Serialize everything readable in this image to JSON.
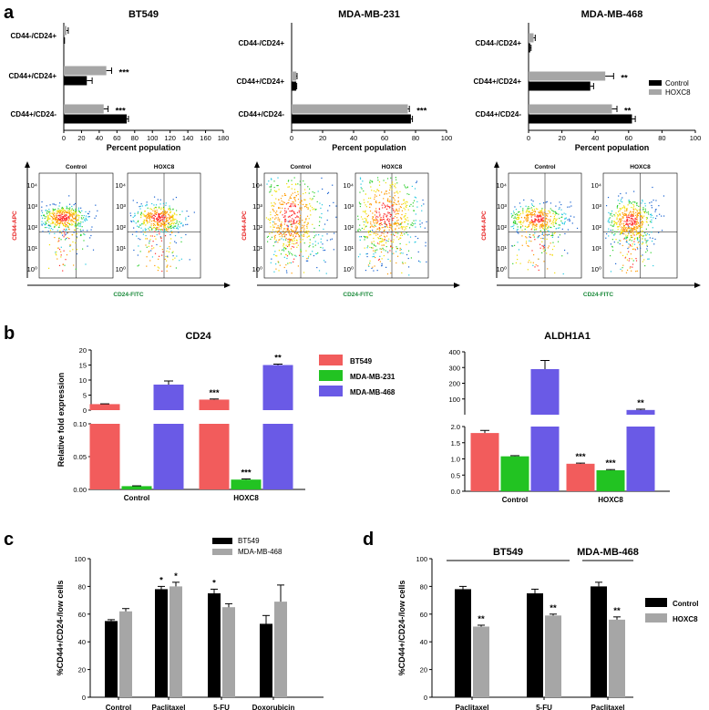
{
  "figure": {
    "panel_labels": [
      "a",
      "b",
      "c",
      "d"
    ]
  },
  "colors": {
    "black": "#000000",
    "gray": "#a6a6a6",
    "bt549": "#f25c5c",
    "mda231": "#22c322",
    "mda468": "#6a5ae6",
    "flow_red": "#e82020",
    "flow_green": "#1a8a3a"
  },
  "chart_data": [
    {
      "id": "a_bt549",
      "type": "bar",
      "orientation": "horizontal",
      "title": "BT549",
      "categories": [
        "CD44-/CD24+",
        "CD44+/CD24+",
        "CD44+/CD24-"
      ],
      "series": [
        {
          "name": "HOXC8",
          "values": [
            3,
            48,
            45
          ],
          "errors": [
            2,
            6,
            5
          ],
          "sig": [
            "",
            "***",
            "***"
          ]
        },
        {
          "name": "Control",
          "values": [
            0.5,
            26,
            71
          ],
          "errors": [
            0.3,
            6,
            2
          ],
          "sig": [
            "",
            "",
            ""
          ]
        }
      ],
      "xlabel": "Percent population",
      "xlim": [
        0,
        180
      ],
      "xticks": [
        "0",
        "20",
        "40",
        "60",
        "80",
        "100",
        "120",
        "140",
        "160",
        "180"
      ]
    },
    {
      "id": "a_mda231",
      "type": "bar",
      "orientation": "horizontal",
      "title": "MDA-MB-231",
      "categories": [
        "CD44-/CD24+",
        "CD44+/CD24+",
        "CD44+/CD24-"
      ],
      "series": [
        {
          "name": "HOXC8",
          "values": [
            0,
            3,
            75
          ],
          "errors": [
            0,
            0.5,
            1
          ],
          "sig": [
            "",
            "",
            "***"
          ]
        },
        {
          "name": "Control",
          "values": [
            0,
            3,
            77
          ],
          "errors": [
            0,
            0.3,
            1
          ],
          "sig": [
            "",
            "",
            ""
          ]
        }
      ],
      "xlabel": "Percent population",
      "xlim": [
        0,
        100
      ],
      "xticks": [
        "0",
        "20",
        "40",
        "60",
        "80",
        "100"
      ]
    },
    {
      "id": "a_mda468",
      "type": "bar",
      "orientation": "horizontal",
      "title": "MDA-MB-468",
      "categories": [
        "CD44-/CD24+",
        "CD44+/CD24+",
        "CD44+/CD24-"
      ],
      "series": [
        {
          "name": "HOXC8",
          "values": [
            3,
            46,
            50
          ],
          "errors": [
            1,
            5,
            3
          ],
          "sig": [
            "",
            "**",
            "**"
          ]
        },
        {
          "name": "Control",
          "values": [
            1,
            37,
            62
          ],
          "errors": [
            0.5,
            2,
            2
          ],
          "sig": [
            "",
            "",
            ""
          ]
        }
      ],
      "xlabel": "Percent population",
      "xlim": [
        0,
        100
      ],
      "xticks": [
        "0",
        "20",
        "40",
        "60",
        "80",
        "100"
      ],
      "legend": [
        {
          "name": "Control",
          "color": "black"
        },
        {
          "name": "HOXC8",
          "color": "gray"
        }
      ]
    },
    {
      "id": "a_flow",
      "type": "scatter",
      "title": "Flow cytometry density plots",
      "groups": [
        {
          "line": "BT549",
          "conditions": [
            "Control",
            "HOXC8"
          ]
        },
        {
          "line": "MDA-MB-231",
          "conditions": [
            "Control",
            "HOXC8"
          ]
        },
        {
          "line": "MDA-MB-468",
          "conditions": [
            "Control",
            "HOXC8"
          ]
        }
      ],
      "xlabel": "CD24-FITC",
      "ylabel": "CD44-APC",
      "log_ticks": [
        "10⁰",
        "10¹",
        "10²",
        "10³",
        "10⁴"
      ]
    },
    {
      "id": "b_cd24",
      "type": "bar",
      "title": "CD24",
      "ylabel": "Relative fold expression",
      "categories": [
        "Control",
        "HOXC8"
      ],
      "series": [
        {
          "name": "BT549",
          "values": [
            2,
            3.5
          ],
          "errors": [
            0.1,
            0.2
          ],
          "sig": [
            "",
            "***"
          ]
        },
        {
          "name": "MDA-MB-231",
          "values": [
            0.005,
            0.015
          ],
          "errors": [
            0.0005,
            0.001
          ],
          "sig": [
            "",
            "***"
          ]
        },
        {
          "name": "MDA-MB-468",
          "values": [
            8.5,
            15
          ],
          "errors": [
            1.2,
            0.3
          ],
          "sig": [
            "",
            "**"
          ]
        }
      ],
      "axis_break": {
        "lower": [
          0,
          0.1
        ],
        "upper": [
          0,
          20
        ]
      },
      "yticks_lower": [
        "0.00",
        "0.05",
        "0.10"
      ],
      "yticks_upper": [
        "0",
        "5",
        "10",
        "15",
        "20"
      ]
    },
    {
      "id": "b_aldh1a1",
      "type": "bar",
      "title": "ALDH1A1",
      "categories": [
        "Control",
        "HOXC8"
      ],
      "series": [
        {
          "name": "BT549",
          "values": [
            1.8,
            0.85
          ],
          "errors": [
            0.08,
            0.02
          ],
          "sig": [
            "",
            "***"
          ]
        },
        {
          "name": "MDA-MB-231",
          "values": [
            1.08,
            0.65
          ],
          "errors": [
            0.02,
            0.02
          ],
          "sig": [
            "",
            "***"
          ]
        },
        {
          "name": "MDA-MB-468",
          "values": [
            290,
            30
          ],
          "errors": [
            55,
            5
          ],
          "sig": [
            "",
            "**"
          ]
        }
      ],
      "axis_break": {
        "lower": [
          0,
          2
        ],
        "upper": [
          0,
          400
        ]
      },
      "yticks_lower": [
        "0.0",
        "0.5",
        "1.0",
        "1.5",
        "2.0"
      ],
      "yticks_upper": [
        "100",
        "200",
        "300",
        "400"
      ]
    },
    {
      "id": "c",
      "type": "bar",
      "ylabel": "%CD44+/CD24-/low cells",
      "categories": [
        "Control",
        "Paclitaxel",
        "5-FU",
        "Doxorubicin"
      ],
      "series": [
        {
          "name": "BT549",
          "values": [
            55,
            78,
            75,
            53
          ],
          "errors": [
            1,
            2,
            3,
            6
          ],
          "sig": [
            "",
            "*",
            "*",
            ""
          ]
        },
        {
          "name": "MDA-MB-468",
          "values": [
            62,
            80,
            65,
            69
          ],
          "errors": [
            2,
            3,
            2.5,
            12
          ],
          "sig": [
            "",
            "*",
            "",
            ""
          ]
        }
      ],
      "ylim": [
        0,
        100
      ],
      "yticks": [
        "0",
        "20",
        "40",
        "60",
        "80",
        "100"
      ]
    },
    {
      "id": "d",
      "type": "bar",
      "ylabel": "%CD44+/CD24-/low cells",
      "categories": [
        "Paclitaxel",
        "5-FU",
        "Paclitaxel"
      ],
      "groups": [
        {
          "label": "BT549",
          "span": [
            0,
            1
          ]
        },
        {
          "label": "MDA-MB-468",
          "span": [
            2,
            2
          ]
        }
      ],
      "series": [
        {
          "name": "Control",
          "values": [
            78,
            75,
            80
          ],
          "errors": [
            2,
            3,
            3
          ],
          "sig": [
            "",
            "",
            ""
          ]
        },
        {
          "name": "HOXC8",
          "values": [
            51,
            59,
            56
          ],
          "errors": [
            1,
            1,
            2
          ],
          "sig": [
            "**",
            "**",
            "**"
          ]
        }
      ],
      "ylim": [
        0,
        100
      ],
      "yticks": [
        "0",
        "20",
        "40",
        "60",
        "80",
        "100"
      ]
    }
  ]
}
